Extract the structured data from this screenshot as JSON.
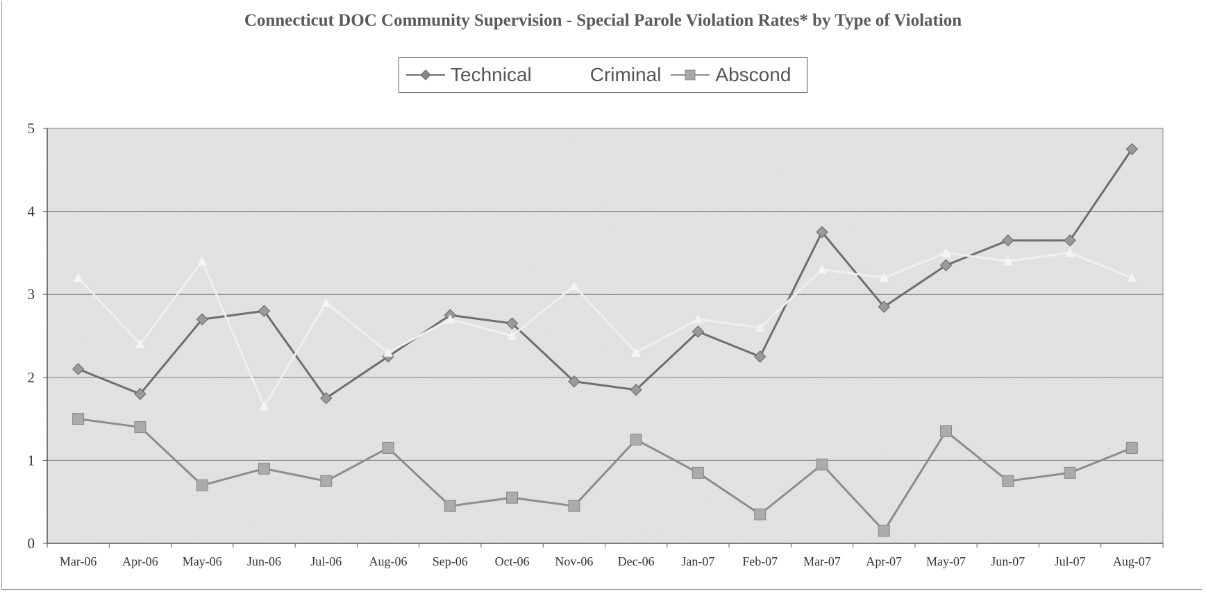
{
  "chart_data": {
    "type": "line",
    "title": "Connecticut DOC Community Supervision -  Special Parole Violation Rates* by Type of Violation",
    "categories": [
      "Mar-06",
      "Apr-06",
      "May-06",
      "Jun-06",
      "Jul-06",
      "Aug-06",
      "Sep-06",
      "Oct-06",
      "Nov-06",
      "Dec-06",
      "Jan-07",
      "Feb-07",
      "Mar-07",
      "Apr-07",
      "May-07",
      "Jun-07",
      "Jul-07",
      "Aug-07"
    ],
    "series": [
      {
        "name": "Technical",
        "color": "#6e6e6e",
        "marker": "diamond",
        "values": [
          2.1,
          1.8,
          2.7,
          2.8,
          1.75,
          2.25,
          2.75,
          2.65,
          1.95,
          1.85,
          2.55,
          2.25,
          3.75,
          2.85,
          3.35,
          3.65,
          3.65,
          4.75
        ]
      },
      {
        "name": "Criminal",
        "color": "#f0f0f0",
        "marker": "triangle",
        "values": [
          3.2,
          2.4,
          3.4,
          1.65,
          2.9,
          2.3,
          2.7,
          2.5,
          3.1,
          2.3,
          2.7,
          2.6,
          3.3,
          3.2,
          3.5,
          3.4,
          3.5,
          3.2
        ]
      },
      {
        "name": "Abscond",
        "color": "#8c8c8c",
        "marker": "square",
        "values": [
          1.5,
          1.4,
          0.7,
          0.9,
          0.75,
          1.15,
          0.45,
          0.55,
          0.45,
          1.25,
          0.85,
          0.35,
          0.95,
          0.15,
          1.35,
          0.75,
          0.85,
          1.15
        ]
      }
    ],
    "ylim": [
      0,
      5
    ],
    "yticks": [
      0,
      1,
      2,
      3,
      4,
      5
    ],
    "grid": true,
    "legend_position": "top-center",
    "xlabel": "",
    "ylabel": ""
  }
}
